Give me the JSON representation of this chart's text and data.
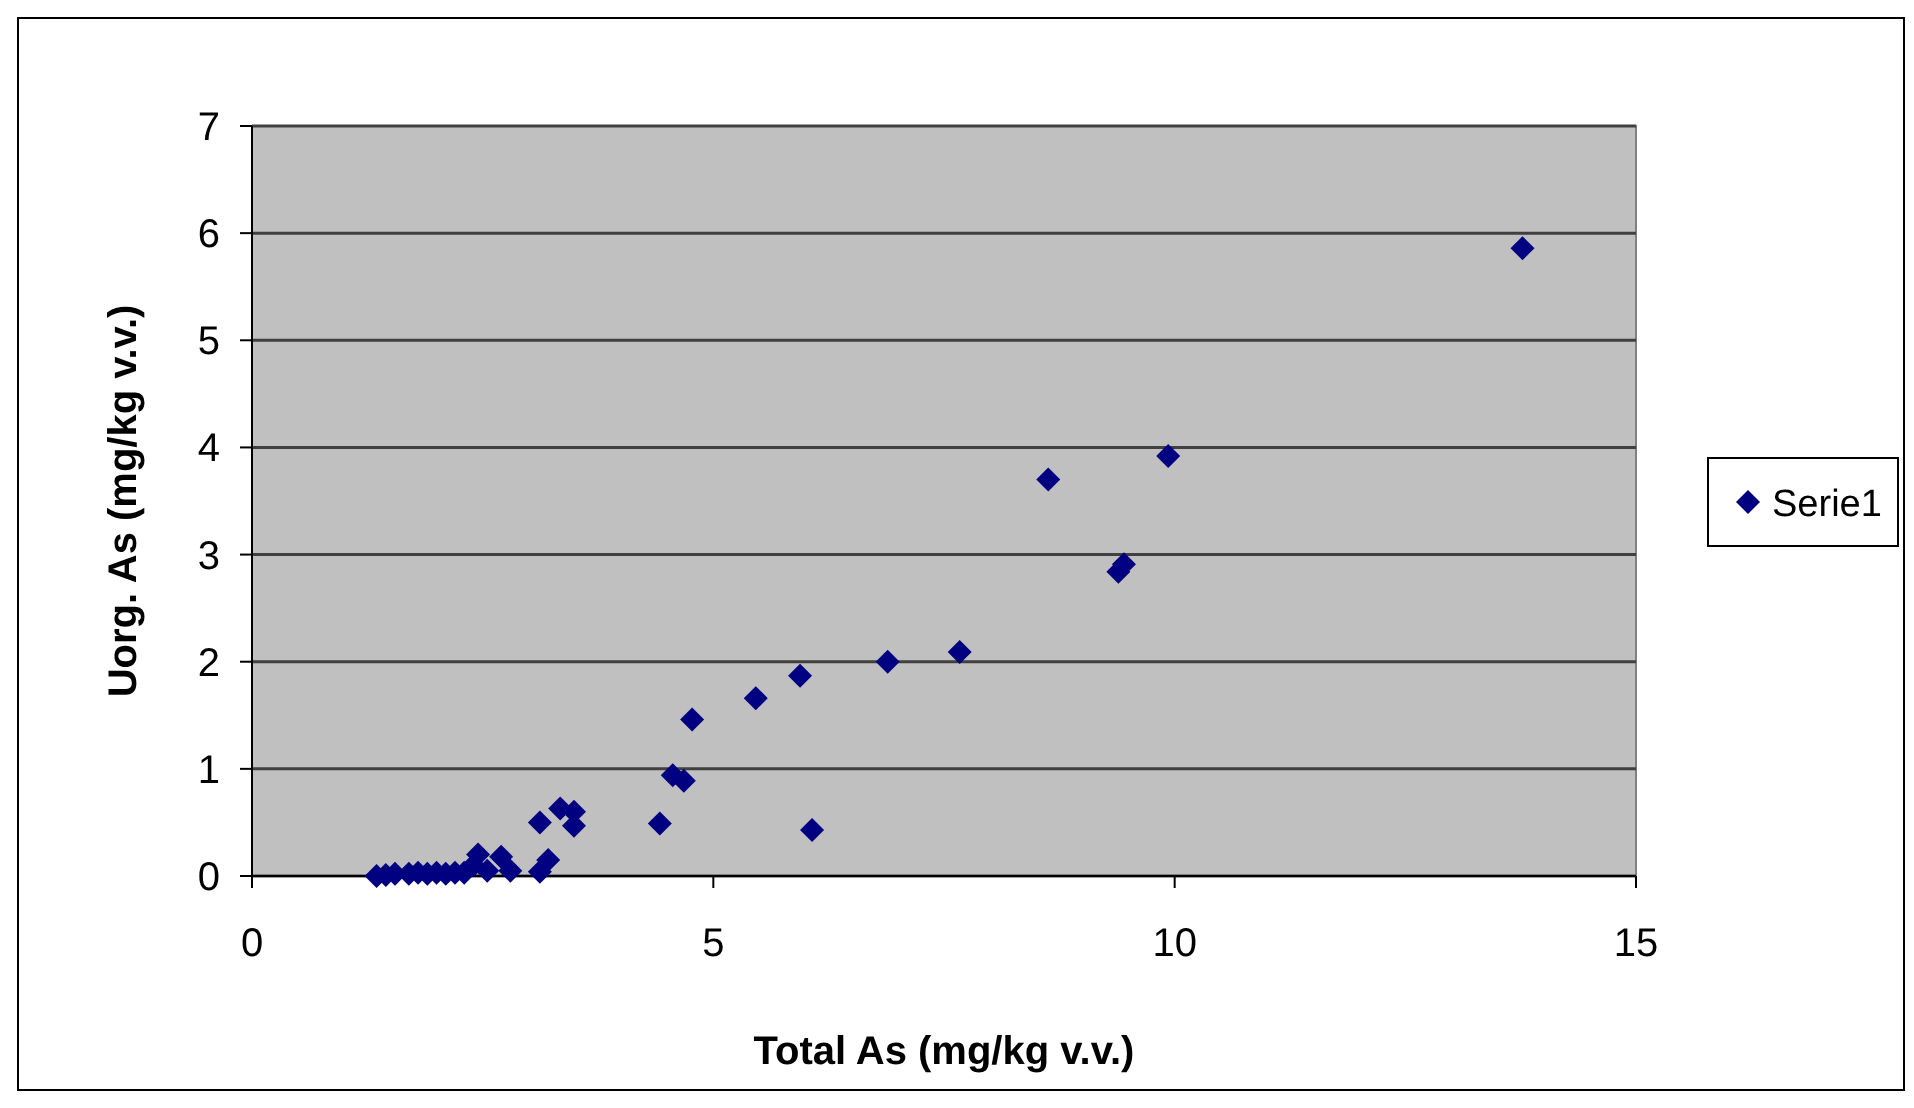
{
  "chart_data": {
    "type": "scatter",
    "xlabel": "Total As (mg/kg v.v.)",
    "ylabel": "Uorg. As (mg/kg v.v.)",
    "xlim": [
      0,
      15
    ],
    "ylim": [
      0,
      7
    ],
    "xticks": [
      0,
      5,
      10,
      15
    ],
    "yticks": [
      0,
      1,
      2,
      3,
      4,
      5,
      6,
      7
    ],
    "grid": "y",
    "legend": "right",
    "marker": "diamond",
    "series": [
      {
        "name": "Serie1",
        "color": "#000080",
        "x": [
          1.35,
          1.45,
          1.55,
          1.7,
          1.8,
          1.9,
          2.0,
          2.1,
          2.2,
          2.3,
          2.4,
          2.45,
          2.55,
          2.7,
          2.8,
          3.12,
          3.21,
          3.12,
          3.34,
          3.49,
          3.49,
          4.42,
          4.56,
          4.68,
          4.77,
          5.46,
          5.94,
          6.07,
          6.89,
          7.67,
          8.63,
          9.39,
          9.45,
          9.93,
          13.77
        ],
        "values": [
          0.0,
          0.01,
          0.02,
          0.02,
          0.03,
          0.02,
          0.03,
          0.02,
          0.03,
          0.03,
          0.1,
          0.2,
          0.05,
          0.18,
          0.05,
          0.04,
          0.15,
          0.5,
          0.63,
          0.6,
          0.47,
          0.49,
          0.94,
          0.89,
          1.46,
          1.66,
          1.87,
          0.43,
          2.0,
          2.09,
          3.7,
          2.84,
          2.91,
          3.92,
          5.86
        ]
      }
    ]
  }
}
